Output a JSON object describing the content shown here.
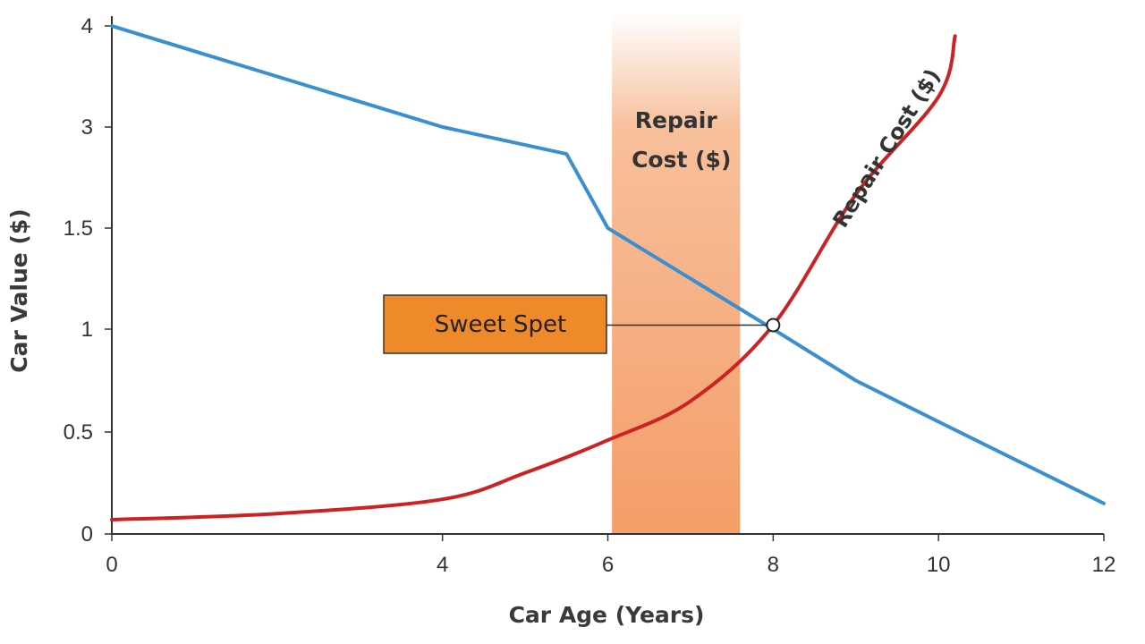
{
  "chart_data": {
    "type": "line",
    "xlabel": "Car Age (Years)",
    "ylabel": "Car Value ($)",
    "xlim": [
      0,
      12
    ],
    "ylim": [
      0,
      4
    ],
    "x_ticks": [
      0,
      4,
      6,
      8,
      10,
      12
    ],
    "x_tick_labels": [
      "0",
      "4",
      "6",
      "8",
      "10",
      "12"
    ],
    "y_ticks": [
      0,
      0.5,
      1,
      1.5,
      3,
      4
    ],
    "y_tick_labels": [
      "0",
      "0.5",
      "1",
      "1.5",
      "3",
      "4"
    ],
    "grid": false,
    "series": [
      {
        "name": "",
        "color": "#3a8fd0",
        "x": [
          0,
          2,
          4,
          5.5,
          6,
          7,
          8,
          9,
          10,
          11,
          12
        ],
        "y": [
          4,
          3.5,
          3,
          2.6,
          1.5,
          1.25,
          1.0,
          0.75,
          0.55,
          0.35,
          0.15
        ]
      },
      {
        "name": "Repair Cost ($)",
        "color": "#cc2222",
        "x": [
          0,
          2,
          4,
          5,
          6,
          7,
          8,
          9,
          10,
          10.2
        ],
        "y": [
          0.07,
          0.1,
          0.17,
          0.3,
          0.46,
          0.65,
          1.02,
          2.0,
          3.3,
          3.9
        ]
      }
    ],
    "highlight_band": {
      "x_start": 6.05,
      "x_end": 7.6,
      "label_line1": "Repair",
      "label_line2": "Cost ($)",
      "color": "#f28c4c"
    },
    "annotation": {
      "text": "Sweet Spet",
      "point_x": 8,
      "point_y": 1.02,
      "box_color": "#ef8a2a"
    }
  }
}
